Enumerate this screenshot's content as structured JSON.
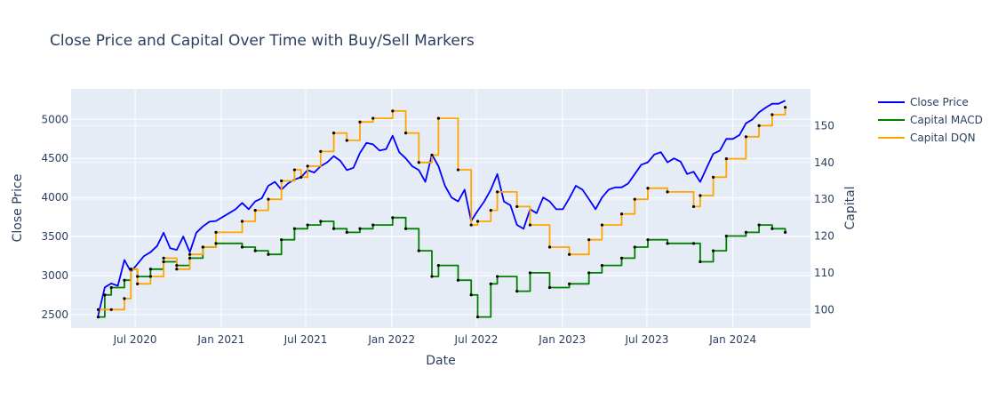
{
  "chart_data": {
    "type": "line",
    "title": "Close Price and Capital Over Time with Buy/Sell Markers",
    "xlabel": "Date",
    "ylabel": "Close Price",
    "y2label": "Capital",
    "xlim": [
      "2020-02-15",
      "2024-06-15"
    ],
    "ylim": [
      2330,
      5390
    ],
    "y2lim": [
      95,
      160
    ],
    "xticks": [
      {
        "date": "2020-07-01",
        "label": "Jul 2020"
      },
      {
        "date": "2021-01-01",
        "label": "Jan 2021"
      },
      {
        "date": "2021-07-01",
        "label": "Jul 2021"
      },
      {
        "date": "2022-01-01",
        "label": "Jan 2022"
      },
      {
        "date": "2022-07-01",
        "label": "Jul 2022"
      },
      {
        "date": "2023-01-01",
        "label": "Jan 2023"
      },
      {
        "date": "2023-07-01",
        "label": "Jul 2023"
      },
      {
        "date": "2024-01-01",
        "label": "Jan 2024"
      }
    ],
    "yticks": [
      2500,
      3000,
      3500,
      4000,
      4500,
      5000
    ],
    "y2ticks": [
      100,
      110,
      120,
      130,
      140,
      150
    ],
    "grid": true,
    "legend_position": "top-right-outside",
    "colors": {
      "close": "#0000ff",
      "macd": "#008000",
      "dqn": "#ffa500",
      "marker": "#000000",
      "plot_bg": "#e5ecf6",
      "grid": "#ffffff"
    },
    "series": [
      {
        "name": "Close Price",
        "axis": "y",
        "style": "line",
        "points": [
          [
            "2020-04-13",
            2490
          ],
          [
            "2020-04-27",
            2850
          ],
          [
            "2020-05-11",
            2900
          ],
          [
            "2020-05-25",
            2870
          ],
          [
            "2020-06-08",
            3200
          ],
          [
            "2020-06-22",
            3050
          ],
          [
            "2020-07-06",
            3150
          ],
          [
            "2020-07-20",
            3250
          ],
          [
            "2020-08-03",
            3300
          ],
          [
            "2020-08-17",
            3380
          ],
          [
            "2020-08-31",
            3550
          ],
          [
            "2020-09-14",
            3350
          ],
          [
            "2020-09-28",
            3330
          ],
          [
            "2020-10-12",
            3500
          ],
          [
            "2020-10-26",
            3300
          ],
          [
            "2020-11-09",
            3550
          ],
          [
            "2020-11-23",
            3630
          ],
          [
            "2020-12-07",
            3690
          ],
          [
            "2020-12-21",
            3700
          ],
          [
            "2021-01-04",
            3750
          ],
          [
            "2021-01-18",
            3800
          ],
          [
            "2021-02-01",
            3850
          ],
          [
            "2021-02-15",
            3930
          ],
          [
            "2021-03-01",
            3850
          ],
          [
            "2021-03-15",
            3950
          ],
          [
            "2021-03-29",
            3990
          ],
          [
            "2021-04-12",
            4150
          ],
          [
            "2021-04-26",
            4200
          ],
          [
            "2021-05-10",
            4100
          ],
          [
            "2021-05-24",
            4180
          ],
          [
            "2021-06-07",
            4230
          ],
          [
            "2021-06-21",
            4260
          ],
          [
            "2021-07-05",
            4350
          ],
          [
            "2021-07-19",
            4320
          ],
          [
            "2021-08-02",
            4400
          ],
          [
            "2021-08-16",
            4450
          ],
          [
            "2021-08-30",
            4530
          ],
          [
            "2021-09-13",
            4470
          ],
          [
            "2021-09-27",
            4350
          ],
          [
            "2021-10-11",
            4380
          ],
          [
            "2021-10-25",
            4570
          ],
          [
            "2021-11-08",
            4700
          ],
          [
            "2021-11-22",
            4680
          ],
          [
            "2021-12-06",
            4600
          ],
          [
            "2021-12-20",
            4620
          ],
          [
            "2022-01-03",
            4790
          ],
          [
            "2022-01-17",
            4580
          ],
          [
            "2022-01-31",
            4500
          ],
          [
            "2022-02-14",
            4400
          ],
          [
            "2022-02-28",
            4350
          ],
          [
            "2022-03-14",
            4200
          ],
          [
            "2022-03-28",
            4550
          ],
          [
            "2022-04-11",
            4400
          ],
          [
            "2022-04-25",
            4150
          ],
          [
            "2022-05-09",
            4000
          ],
          [
            "2022-05-23",
            3950
          ],
          [
            "2022-06-06",
            4100
          ],
          [
            "2022-06-20",
            3700
          ],
          [
            "2022-07-04",
            3830
          ],
          [
            "2022-07-18",
            3950
          ],
          [
            "2022-08-01",
            4100
          ],
          [
            "2022-08-15",
            4300
          ],
          [
            "2022-08-29",
            3950
          ],
          [
            "2022-09-12",
            3900
          ],
          [
            "2022-09-26",
            3650
          ],
          [
            "2022-10-10",
            3600
          ],
          [
            "2022-10-24",
            3850
          ],
          [
            "2022-11-07",
            3800
          ],
          [
            "2022-11-21",
            4000
          ],
          [
            "2022-12-05",
            3950
          ],
          [
            "2022-12-19",
            3850
          ],
          [
            "2023-01-02",
            3850
          ],
          [
            "2023-01-16",
            3990
          ],
          [
            "2023-01-30",
            4150
          ],
          [
            "2023-02-13",
            4100
          ],
          [
            "2023-02-27",
            3980
          ],
          [
            "2023-03-13",
            3850
          ],
          [
            "2023-03-27",
            4000
          ],
          [
            "2023-04-10",
            4100
          ],
          [
            "2023-04-24",
            4130
          ],
          [
            "2023-05-08",
            4130
          ],
          [
            "2023-05-22",
            4180
          ],
          [
            "2023-06-05",
            4300
          ],
          [
            "2023-06-19",
            4420
          ],
          [
            "2023-07-03",
            4450
          ],
          [
            "2023-07-17",
            4550
          ],
          [
            "2023-07-31",
            4580
          ],
          [
            "2023-08-14",
            4450
          ],
          [
            "2023-08-28",
            4500
          ],
          [
            "2023-09-11",
            4460
          ],
          [
            "2023-09-25",
            4300
          ],
          [
            "2023-10-09",
            4330
          ],
          [
            "2023-10-23",
            4200
          ],
          [
            "2023-11-06",
            4380
          ],
          [
            "2023-11-20",
            4560
          ],
          [
            "2023-12-04",
            4600
          ],
          [
            "2023-12-18",
            4750
          ],
          [
            "2024-01-01",
            4750
          ],
          [
            "2024-01-15",
            4800
          ],
          [
            "2024-01-29",
            4950
          ],
          [
            "2024-02-12",
            5000
          ],
          [
            "2024-02-26",
            5090
          ],
          [
            "2024-03-11",
            5150
          ],
          [
            "2024-03-25",
            5200
          ],
          [
            "2024-04-08",
            5200
          ],
          [
            "2024-04-22",
            5240
          ]
        ]
      },
      {
        "name": "Capital MACD",
        "axis": "y2",
        "style": "step",
        "points": [
          [
            "2020-04-13",
            98
          ],
          [
            "2020-04-27",
            104
          ],
          [
            "2020-05-11",
            106
          ],
          [
            "2020-06-08",
            108
          ],
          [
            "2020-06-22",
            111
          ],
          [
            "2020-07-06",
            109
          ],
          [
            "2020-08-03",
            111
          ],
          [
            "2020-08-31",
            113
          ],
          [
            "2020-09-28",
            112
          ],
          [
            "2020-10-26",
            114
          ],
          [
            "2020-11-23",
            117
          ],
          [
            "2020-12-21",
            118
          ],
          [
            "2021-02-15",
            117
          ],
          [
            "2021-03-15",
            116
          ],
          [
            "2021-04-12",
            115
          ],
          [
            "2021-05-10",
            119
          ],
          [
            "2021-06-07",
            122
          ],
          [
            "2021-07-05",
            123
          ],
          [
            "2021-08-02",
            124
          ],
          [
            "2021-08-30",
            122
          ],
          [
            "2021-09-27",
            121
          ],
          [
            "2021-10-25",
            122
          ],
          [
            "2021-11-22",
            123
          ],
          [
            "2022-01-03",
            125
          ],
          [
            "2022-01-31",
            122
          ],
          [
            "2022-02-28",
            116
          ],
          [
            "2022-03-28",
            109
          ],
          [
            "2022-04-11",
            112
          ],
          [
            "2022-05-23",
            108
          ],
          [
            "2022-06-20",
            104
          ],
          [
            "2022-07-04",
            98
          ],
          [
            "2022-08-01",
            107
          ],
          [
            "2022-08-15",
            109
          ],
          [
            "2022-09-26",
            105
          ],
          [
            "2022-10-24",
            110
          ],
          [
            "2022-12-05",
            106
          ],
          [
            "2023-01-16",
            107
          ],
          [
            "2023-02-27",
            110
          ],
          [
            "2023-03-27",
            112
          ],
          [
            "2023-05-08",
            114
          ],
          [
            "2023-06-05",
            117
          ],
          [
            "2023-07-03",
            119
          ],
          [
            "2023-08-14",
            118
          ],
          [
            "2023-10-09",
            118
          ],
          [
            "2023-10-23",
            113
          ],
          [
            "2023-11-20",
            116
          ],
          [
            "2023-12-18",
            120
          ],
          [
            "2024-01-29",
            121
          ],
          [
            "2024-02-26",
            123
          ],
          [
            "2024-03-25",
            122
          ],
          [
            "2024-04-22",
            121
          ]
        ]
      },
      {
        "name": "Capital DQN",
        "axis": "y2",
        "style": "step",
        "points": [
          [
            "2020-04-13",
            100
          ],
          [
            "2020-05-11",
            100
          ],
          [
            "2020-06-08",
            103
          ],
          [
            "2020-06-22",
            111
          ],
          [
            "2020-07-06",
            107
          ],
          [
            "2020-08-03",
            109
          ],
          [
            "2020-08-31",
            114
          ],
          [
            "2020-09-28",
            111
          ],
          [
            "2020-10-26",
            115
          ],
          [
            "2020-11-23",
            117
          ],
          [
            "2020-12-21",
            121
          ],
          [
            "2021-02-15",
            124
          ],
          [
            "2021-03-15",
            127
          ],
          [
            "2021-04-12",
            130
          ],
          [
            "2021-05-10",
            135
          ],
          [
            "2021-06-07",
            138
          ],
          [
            "2021-06-21",
            136
          ],
          [
            "2021-07-05",
            139
          ],
          [
            "2021-08-02",
            143
          ],
          [
            "2021-08-30",
            148
          ],
          [
            "2021-09-27",
            146
          ],
          [
            "2021-10-25",
            151
          ],
          [
            "2021-11-22",
            152
          ],
          [
            "2022-01-03",
            154
          ],
          [
            "2022-01-31",
            148
          ],
          [
            "2022-02-28",
            140
          ],
          [
            "2022-03-28",
            142
          ],
          [
            "2022-04-11",
            152
          ],
          [
            "2022-05-23",
            138
          ],
          [
            "2022-06-20",
            123
          ],
          [
            "2022-07-04",
            124
          ],
          [
            "2022-08-01",
            127
          ],
          [
            "2022-08-15",
            132
          ],
          [
            "2022-09-26",
            128
          ],
          [
            "2022-10-24",
            123
          ],
          [
            "2022-12-05",
            117
          ],
          [
            "2023-01-16",
            115
          ],
          [
            "2023-02-27",
            119
          ],
          [
            "2023-03-27",
            123
          ],
          [
            "2023-05-08",
            126
          ],
          [
            "2023-06-05",
            130
          ],
          [
            "2023-07-03",
            133
          ],
          [
            "2023-08-14",
            132
          ],
          [
            "2023-10-09",
            128
          ],
          [
            "2023-10-23",
            131
          ],
          [
            "2023-11-20",
            136
          ],
          [
            "2023-12-18",
            141
          ],
          [
            "2024-01-29",
            147
          ],
          [
            "2024-02-26",
            150
          ],
          [
            "2024-03-25",
            153
          ],
          [
            "2024-04-22",
            155
          ]
        ]
      }
    ]
  }
}
